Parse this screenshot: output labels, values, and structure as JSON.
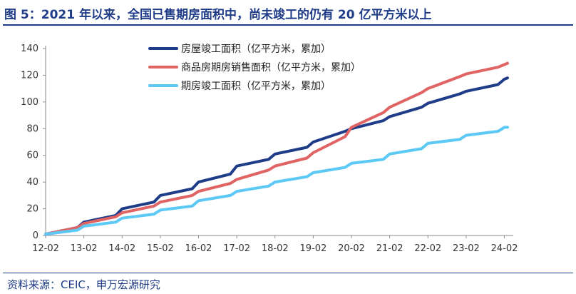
{
  "title": "图 5：2021 年以来，全国已售期房面积中，尚未竣工的仍有 20 亿平方米以上",
  "source": "资料来源：CEIC，申万宏源研究",
  "chart_data": {
    "type": "line",
    "title": "",
    "xlabel": "",
    "ylabel": "",
    "ylim": [
      0,
      140
    ],
    "yticks": [
      0,
      20,
      40,
      60,
      80,
      100,
      120,
      140
    ],
    "xlim": [
      "2012-02",
      "2024-03"
    ],
    "xticks": [
      "12-02",
      "13-02",
      "14-02",
      "15-02",
      "16-02",
      "17-02",
      "18-02",
      "19-02",
      "20-02",
      "21-02",
      "22-02",
      "23-02",
      "24-02"
    ],
    "grid": false,
    "legend_position": "top-center",
    "x": [
      "2012-02",
      "2012-12",
      "2013-02",
      "2013-12",
      "2014-02",
      "2014-12",
      "2015-02",
      "2015-12",
      "2016-02",
      "2016-12",
      "2017-02",
      "2017-12",
      "2018-02",
      "2018-12",
      "2019-02",
      "2019-12",
      "2020-02",
      "2020-12",
      "2021-02",
      "2021-12",
      "2022-02",
      "2022-12",
      "2023-02",
      "2023-12",
      "2024-02",
      "2024-03"
    ],
    "series": [
      {
        "name": "房屋竣工面积（亿平方米，累加）",
        "color": "#1f3c88",
        "values": [
          1,
          6,
          10,
          15,
          20,
          25,
          30,
          35,
          40,
          46,
          52,
          57,
          61,
          66,
          70,
          78,
          80,
          86,
          89,
          96,
          99,
          106,
          108,
          113,
          117,
          118
        ]
      },
      {
        "name": "商品房期房销售面积（亿平方米，累加）",
        "color": "#e06464",
        "values": [
          1,
          6,
          9,
          14,
          17,
          22,
          25,
          30,
          33,
          39,
          42,
          49,
          52,
          58,
          62,
          74,
          81,
          92,
          96,
          107,
          110,
          119,
          121,
          126,
          128,
          129
        ]
      },
      {
        "name": "期房竣工面积（亿平方米，累加）",
        "color": "#5bc8f5",
        "values": [
          1,
          4,
          7,
          10,
          13,
          16,
          19,
          22,
          26,
          30,
          33,
          37,
          40,
          44,
          47,
          51,
          54,
          57,
          61,
          65,
          69,
          72,
          75,
          78,
          81,
          81
        ]
      }
    ]
  }
}
